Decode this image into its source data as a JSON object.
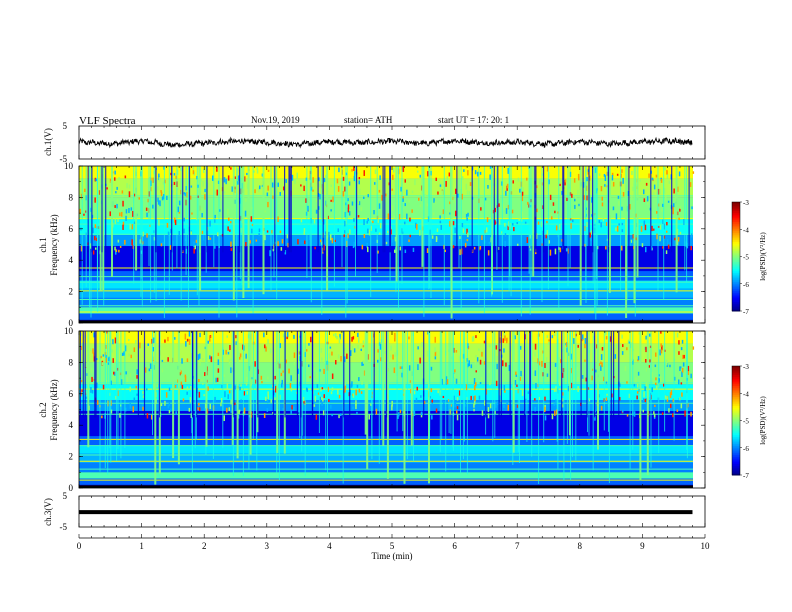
{
  "header": {
    "title": "VLF  Spectra",
    "date": "Nov.19, 2019",
    "station": "station= ATH",
    "start": "start  UT  =    17: 20: 1"
  },
  "chart_data": [
    {
      "type": "line",
      "panel": "ch1-waveform",
      "ylabel": "ch.1(V)",
      "ylim": [
        -5,
        5
      ],
      "y_ticks": [
        5,
        -5
      ],
      "xlim": [
        0,
        10
      ],
      "description_level": "noisy waveform around 0 V, amplitude about ±1.5 V",
      "x": [
        0,
        0.5,
        1,
        1.5,
        2,
        2.5,
        3,
        3.5,
        4,
        4.5,
        5,
        5.5,
        6,
        6.5,
        7,
        7.5,
        8,
        8.5,
        9,
        9.5,
        9.8
      ],
      "values": [
        0.2,
        -0.4,
        0.5,
        -0.8,
        -0.2,
        0.4,
        0.1,
        -0.6,
        0.3,
        -0.1,
        0.4,
        -0.3,
        0.6,
        -0.2,
        0.1,
        -0.5,
        0.3,
        -0.4,
        0.2,
        0.5,
        0.0
      ]
    },
    {
      "type": "heatmap",
      "panel": "ch1-spectrogram",
      "ylabel": "ch.1\nFrequency  (kHz)",
      "ylim": [
        0,
        10
      ],
      "y_ticks": [
        "0",
        "2",
        "4",
        "6",
        "8",
        "10"
      ],
      "xlim": [
        0,
        10
      ],
      "colorbar": {
        "label": "log(PSD)(V²/Hz)",
        "ticks": [
          "-3",
          "-4",
          "-5",
          "-6",
          "-7"
        ],
        "range": [
          -7,
          -3
        ]
      }
    },
    {
      "type": "heatmap",
      "panel": "ch2-spectrogram",
      "ylabel": "ch.2\nFrequency  (kHz)",
      "ylim": [
        0,
        10
      ],
      "y_ticks": [
        "0",
        "2",
        "4",
        "6",
        "8",
        "10"
      ],
      "xlim": [
        0,
        10
      ],
      "colorbar": {
        "label": "log(PSD)(V²/Hz)",
        "ticks": [
          "-3",
          "-4",
          "-5",
          "-6",
          "-7"
        ],
        "range": [
          -7,
          -3
        ]
      }
    },
    {
      "type": "line",
      "panel": "ch3-waveform",
      "ylabel": "ch.3(V)",
      "ylim": [
        -5,
        5
      ],
      "y_ticks": [
        5,
        -5
      ],
      "xlim": [
        0,
        10
      ],
      "x": [
        0,
        9.8
      ],
      "values": [
        -0.2,
        -0.2
      ],
      "xlabel": "Time  (min)",
      "x_ticks": [
        "0",
        "1",
        "2",
        "3",
        "4",
        "5",
        "6",
        "7",
        "8",
        "9",
        "10"
      ]
    }
  ]
}
